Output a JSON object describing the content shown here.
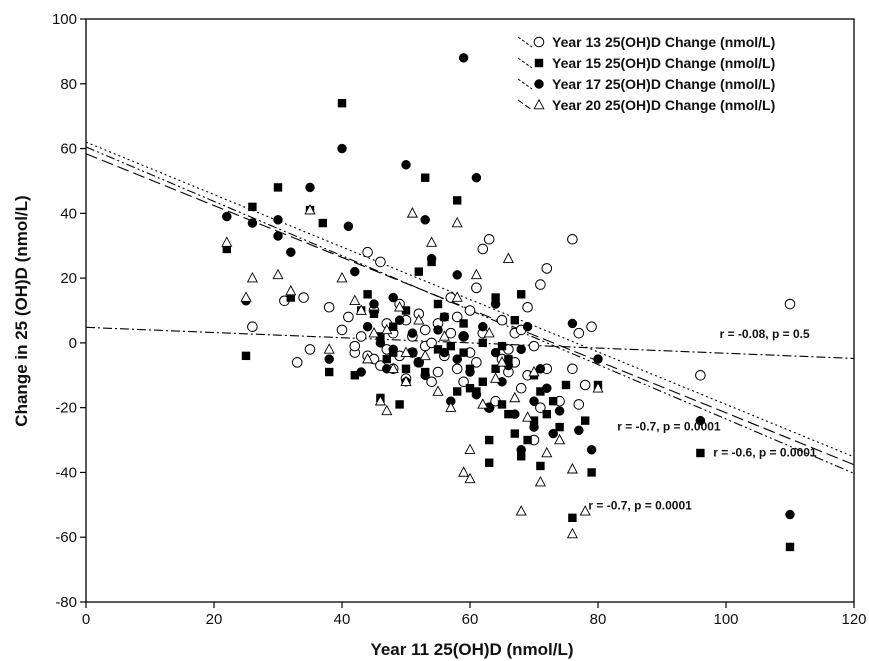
{
  "chart_data": {
    "type": "scatter",
    "title": "",
    "xlabel": "Year 11 25(OH)D (nmol/L)",
    "ylabel": "Change in 25 (OH)D (nmol/L)",
    "xlim": [
      0,
      120
    ],
    "ylim": [
      -80,
      100
    ],
    "xticks": [
      0,
      20,
      40,
      60,
      80,
      100,
      120
    ],
    "yticks": [
      -80,
      -60,
      -40,
      -20,
      0,
      20,
      40,
      60,
      80,
      100
    ],
    "grid": false,
    "legend_position": "top-right",
    "series": [
      {
        "name": "Year 13 25(OH)D Change (nmol/L)",
        "marker": "circle-open",
        "line_style": "dash-dot",
        "fit": [
          4.8,
          -0.08
        ],
        "points": [
          [
            26,
            5
          ],
          [
            31,
            13
          ],
          [
            33,
            -6
          ],
          [
            34,
            14
          ],
          [
            35,
            -2
          ],
          [
            38,
            11
          ],
          [
            40,
            4
          ],
          [
            41,
            8
          ],
          [
            42,
            -3
          ],
          [
            42,
            -1
          ],
          [
            43,
            2
          ],
          [
            44,
            28
          ],
          [
            44,
            -4
          ],
          [
            45,
            10
          ],
          [
            45,
            -5
          ],
          [
            46,
            25
          ],
          [
            46,
            -7
          ],
          [
            47,
            6
          ],
          [
            47,
            -2
          ],
          [
            48,
            3
          ],
          [
            48,
            -8
          ],
          [
            49,
            12
          ],
          [
            49,
            -4
          ],
          [
            50,
            7
          ],
          [
            50,
            -11
          ],
          [
            51,
            2
          ],
          [
            51,
            -3
          ],
          [
            52,
            9
          ],
          [
            52,
            -6
          ],
          [
            53,
            4
          ],
          [
            53,
            -1
          ],
          [
            54,
            0
          ],
          [
            54,
            -12
          ],
          [
            55,
            6
          ],
          [
            55,
            -9
          ],
          [
            56,
            -4
          ],
          [
            57,
            14
          ],
          [
            57,
            3
          ],
          [
            58,
            -8
          ],
          [
            58,
            8
          ],
          [
            59,
            -12
          ],
          [
            59,
            2
          ],
          [
            60,
            10
          ],
          [
            60,
            -3
          ],
          [
            61,
            17
          ],
          [
            61,
            -6
          ],
          [
            62,
            29
          ],
          [
            62,
            3
          ],
          [
            63,
            32
          ],
          [
            63,
            -20
          ],
          [
            64,
            -18
          ],
          [
            65,
            7
          ],
          [
            65,
            -5
          ],
          [
            66,
            -2
          ],
          [
            66,
            -9
          ],
          [
            67,
            3
          ],
          [
            67,
            -6
          ],
          [
            68,
            4
          ],
          [
            68,
            -14
          ],
          [
            69,
            11
          ],
          [
            69,
            -10
          ],
          [
            70,
            -1
          ],
          [
            70,
            -30
          ],
          [
            71,
            18
          ],
          [
            71,
            -20
          ],
          [
            72,
            23
          ],
          [
            72,
            -8
          ],
          [
            74,
            -18
          ],
          [
            76,
            32
          ],
          [
            76,
            -8
          ],
          [
            77,
            3
          ],
          [
            77,
            -19
          ],
          [
            78,
            -13
          ],
          [
            79,
            5
          ],
          [
            96,
            -10
          ],
          [
            110,
            12
          ]
        ]
      },
      {
        "name": "Year 15 25(OH)D Change (nmol/L)",
        "marker": "square-filled",
        "line_style": "dash-dot-dot",
        "fit": [
          60.5,
          -0.84
        ],
        "points": [
          [
            22,
            29
          ],
          [
            25,
            -4
          ],
          [
            26,
            42
          ],
          [
            30,
            48
          ],
          [
            32,
            14
          ],
          [
            35,
            41
          ],
          [
            37,
            37
          ],
          [
            38,
            -9
          ],
          [
            40,
            74
          ],
          [
            42,
            -10
          ],
          [
            43,
            10
          ],
          [
            44,
            15
          ],
          [
            45,
            9
          ],
          [
            46,
            -17
          ],
          [
            46,
            2
          ],
          [
            47,
            -5
          ],
          [
            48,
            5
          ],
          [
            48,
            -3
          ],
          [
            49,
            -19
          ],
          [
            50,
            10
          ],
          [
            50,
            -8
          ],
          [
            51,
            -3
          ],
          [
            52,
            -6
          ],
          [
            52,
            22
          ],
          [
            53,
            51
          ],
          [
            53,
            -9
          ],
          [
            54,
            25
          ],
          [
            55,
            12
          ],
          [
            55,
            -2
          ],
          [
            56,
            8
          ],
          [
            57,
            -1
          ],
          [
            58,
            44
          ],
          [
            58,
            -15
          ],
          [
            59,
            6
          ],
          [
            59,
            -3
          ],
          [
            60,
            -8
          ],
          [
            60,
            -14
          ],
          [
            61,
            -15
          ],
          [
            62,
            0
          ],
          [
            62,
            -12
          ],
          [
            63,
            -37
          ],
          [
            63,
            -30
          ],
          [
            64,
            14
          ],
          [
            64,
            -8
          ],
          [
            65,
            -1
          ],
          [
            65,
            -19
          ],
          [
            66,
            -5
          ],
          [
            66,
            -22
          ],
          [
            67,
            7
          ],
          [
            67,
            -28
          ],
          [
            68,
            15
          ],
          [
            68,
            -35
          ],
          [
            69,
            -30
          ],
          [
            70,
            -10
          ],
          [
            70,
            -24
          ],
          [
            71,
            -38
          ],
          [
            71,
            -15
          ],
          [
            72,
            -22
          ],
          [
            73,
            -18
          ],
          [
            74,
            -26
          ],
          [
            75,
            -13
          ],
          [
            76,
            -54
          ],
          [
            78,
            -24
          ],
          [
            79,
            -40
          ],
          [
            80,
            -13
          ],
          [
            96,
            -34
          ],
          [
            110,
            -63
          ]
        ]
      },
      {
        "name": "Year 17 25(OH)D Change (nmol/L)",
        "marker": "circle-filled",
        "line_style": "dotted",
        "fit": [
          62,
          -0.81
        ],
        "points": [
          [
            22,
            39
          ],
          [
            25,
            13
          ],
          [
            26,
            37
          ],
          [
            30,
            38
          ],
          [
            30,
            33
          ],
          [
            32,
            28
          ],
          [
            35,
            48
          ],
          [
            38,
            -5
          ],
          [
            40,
            60
          ],
          [
            41,
            36
          ],
          [
            42,
            22
          ],
          [
            43,
            -9
          ],
          [
            44,
            5
          ],
          [
            45,
            12
          ],
          [
            46,
            0
          ],
          [
            47,
            -8
          ],
          [
            48,
            14
          ],
          [
            48,
            -2
          ],
          [
            49,
            7
          ],
          [
            50,
            -12
          ],
          [
            50,
            55
          ],
          [
            51,
            3
          ],
          [
            52,
            -6
          ],
          [
            53,
            38
          ],
          [
            53,
            -10
          ],
          [
            54,
            26
          ],
          [
            55,
            4
          ],
          [
            56,
            -3
          ],
          [
            56,
            8
          ],
          [
            57,
            -18
          ],
          [
            58,
            21
          ],
          [
            58,
            -5
          ],
          [
            59,
            88
          ],
          [
            59,
            2
          ],
          [
            60,
            -9
          ],
          [
            61,
            51
          ],
          [
            61,
            -16
          ],
          [
            62,
            5
          ],
          [
            63,
            -20
          ],
          [
            64,
            -3
          ],
          [
            64,
            12
          ],
          [
            65,
            -12
          ],
          [
            66,
            -7
          ],
          [
            67,
            -22
          ],
          [
            68,
            -2
          ],
          [
            68,
            -33
          ],
          [
            69,
            5
          ],
          [
            70,
            -18
          ],
          [
            70,
            -26
          ],
          [
            71,
            -8
          ],
          [
            72,
            -14
          ],
          [
            73,
            -28
          ],
          [
            74,
            -21
          ],
          [
            76,
            6
          ],
          [
            77,
            -27
          ],
          [
            79,
            -33
          ],
          [
            80,
            -5
          ],
          [
            96,
            -24
          ],
          [
            110,
            -53
          ]
        ]
      },
      {
        "name": "Year 20 25(OH)D Change (nmol/L)",
        "marker": "triangle-open",
        "line_style": "dashed",
        "fit": [
          58.4,
          -0.8
        ],
        "points": [
          [
            22,
            31
          ],
          [
            25,
            14
          ],
          [
            26,
            20
          ],
          [
            30,
            21
          ],
          [
            32,
            16
          ],
          [
            35,
            41
          ],
          [
            38,
            -2
          ],
          [
            40,
            20
          ],
          [
            42,
            13
          ],
          [
            43,
            10
          ],
          [
            44,
            -5
          ],
          [
            45,
            3
          ],
          [
            46,
            -18
          ],
          [
            47,
            4
          ],
          [
            47,
            -21
          ],
          [
            48,
            -8
          ],
          [
            49,
            11
          ],
          [
            50,
            -3
          ],
          [
            50,
            -12
          ],
          [
            51,
            40
          ],
          [
            52,
            7
          ],
          [
            53,
            -4
          ],
          [
            54,
            31
          ],
          [
            55,
            -15
          ],
          [
            56,
            2
          ],
          [
            57,
            -20
          ],
          [
            58,
            14
          ],
          [
            58,
            37
          ],
          [
            59,
            -40
          ],
          [
            60,
            -42
          ],
          [
            60,
            -33
          ],
          [
            61,
            21
          ],
          [
            62,
            -19
          ],
          [
            63,
            3
          ],
          [
            64,
            -11
          ],
          [
            65,
            -6
          ],
          [
            66,
            26
          ],
          [
            67,
            -17
          ],
          [
            68,
            -52
          ],
          [
            69,
            -23
          ],
          [
            70,
            -9
          ],
          [
            71,
            -43
          ],
          [
            72,
            -34
          ],
          [
            74,
            -30
          ],
          [
            76,
            -39
          ],
          [
            76,
            -59
          ],
          [
            78,
            -52
          ],
          [
            80,
            -14
          ]
        ]
      }
    ],
    "annotations": [
      {
        "text": "r = -0.08, p = 0.5",
        "x": 99,
        "y": 1.5
      },
      {
        "text": "r = -0.7, p = 0.0001",
        "x": 83,
        "y": -27
      },
      {
        "text": "r = -0.6, p = 0.0001",
        "x": 98,
        "y": -35
      },
      {
        "text": "r = -0.7, p = 0.0001",
        "x": 78.5,
        "y": -51.5
      }
    ]
  }
}
